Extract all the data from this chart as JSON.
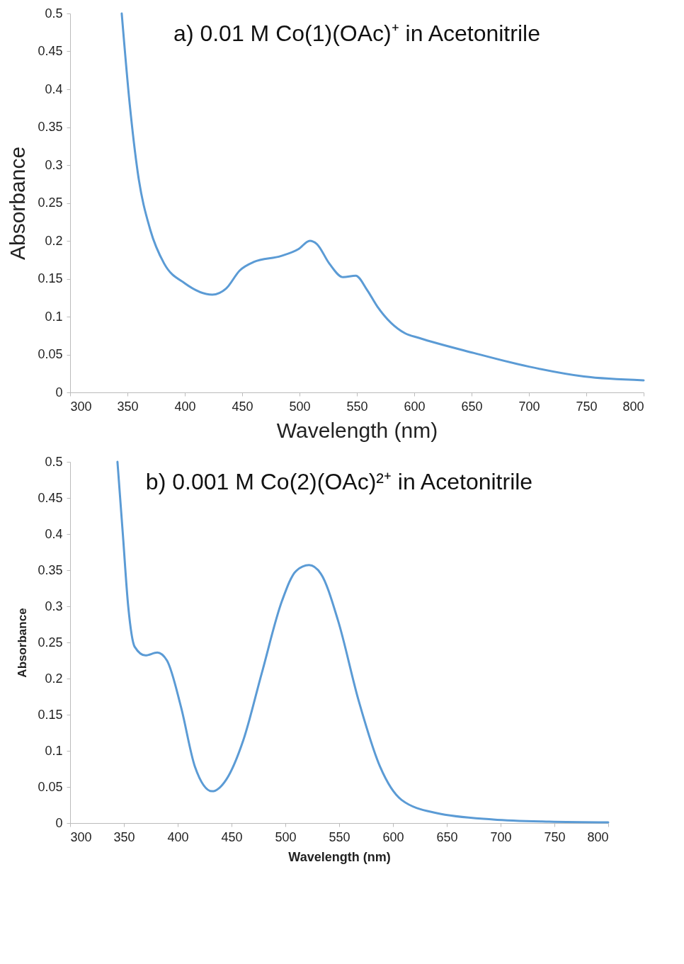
{
  "chart_data": [
    {
      "type": "line",
      "title": "a) 0.01 M Co(1)(OAc)⁺ in Acetonitrile",
      "xlabel": "Wavelength (nm)",
      "ylabel": "Absorbance",
      "xlim": [
        300,
        800
      ],
      "ylim": [
        0,
        0.5
      ],
      "xticks": [
        300,
        350,
        400,
        450,
        500,
        550,
        600,
        650,
        700,
        750,
        800
      ],
      "yticks": [
        0,
        0.05,
        0.1,
        0.15,
        0.2,
        0.25,
        0.3,
        0.35,
        0.4,
        0.45,
        0.5
      ],
      "grid": false,
      "legend": false,
      "marker": "none",
      "line_style": "solid",
      "x": [
        345,
        352,
        359,
        370,
        382,
        400,
        424,
        436,
        448,
        460,
        484,
        499,
        509,
        515,
        526,
        538,
        549,
        559,
        568,
        592,
        604,
        652,
        700,
        748,
        800
      ],
      "series": [
        {
          "color": "#5b9bd5",
          "values": [
            0.5,
            0.38,
            0.29,
            0.214,
            0.17,
            0.144,
            0.129,
            0.137,
            0.161,
            0.172,
            0.18,
            0.189,
            0.2,
            0.196,
            0.17,
            0.152,
            0.154,
            0.135,
            0.113,
            0.078,
            0.072,
            0.052,
            0.034,
            0.021,
            0.016
          ]
        }
      ]
    },
    {
      "type": "line",
      "title": "b) 0.001 M Co(2)(OAc)²⁺ in Acetonitrile",
      "xlabel": "Wavelength (nm)",
      "ylabel": "Absorbance",
      "xlim": [
        300,
        800
      ],
      "ylim": [
        0,
        0.5
      ],
      "xticks": [
        300,
        350,
        400,
        450,
        500,
        550,
        600,
        650,
        700,
        750,
        800
      ],
      "yticks": [
        0,
        0.05,
        0.1,
        0.15,
        0.2,
        0.25,
        0.3,
        0.35,
        0.4,
        0.45,
        0.5
      ],
      "grid": false,
      "legend": false,
      "marker": "none",
      "line_style": "solid",
      "x": [
        344,
        349,
        354,
        360,
        370,
        381,
        390,
        403,
        416,
        432,
        445,
        461,
        478,
        497,
        510,
        522,
        533,
        549,
        568,
        588,
        608,
        640,
        693,
        745,
        800
      ],
      "series": [
        {
          "color": "#5b9bd5",
          "values": [
            0.5,
            0.4,
            0.3,
            0.244,
            0.232,
            0.236,
            0.225,
            0.161,
            0.078,
            0.044,
            0.06,
            0.115,
            0.207,
            0.308,
            0.349,
            0.357,
            0.345,
            0.28,
            0.17,
            0.078,
            0.032,
            0.014,
            0.005,
            0.002,
            0.001
          ]
        }
      ]
    }
  ]
}
